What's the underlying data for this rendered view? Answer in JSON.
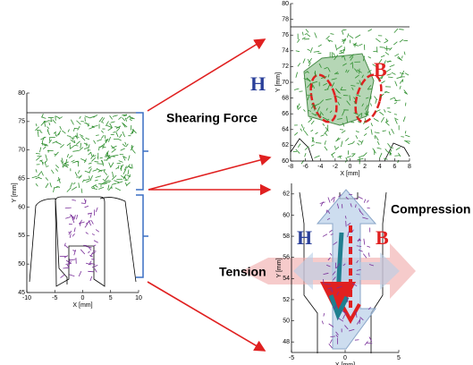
{
  "panels": [
    {
      "xlabel": "X [mm]",
      "ylabel": "Y [mm]",
      "xlim": [
        -10,
        10
      ],
      "ylim": [
        45,
        80
      ],
      "xticks": [
        -10,
        -5,
        0,
        5,
        10
      ],
      "yticks": [
        45,
        50,
        55,
        60,
        65,
        70,
        75,
        80
      ]
    },
    {
      "xlabel": "X [mm]",
      "ylabel": "Y [mm]",
      "xlim": [
        -8,
        8
      ],
      "ylim": [
        60,
        80
      ],
      "xticks": [
        -8,
        -6,
        -4,
        -2,
        0,
        2,
        4,
        6,
        8
      ],
      "yticks": [
        60,
        62,
        64,
        66,
        68,
        70,
        72,
        74,
        76,
        78,
        80
      ]
    },
    {
      "xlabel": "X [mm]",
      "ylabel": "Y [mm]",
      "xlim": [
        -5,
        5
      ],
      "ylim": [
        47,
        63
      ],
      "xticks": [
        -5,
        0,
        5
      ],
      "yticks": [
        48,
        50,
        52,
        54,
        56,
        58,
        60,
        62
      ]
    }
  ],
  "labels": {
    "shearing": "Shearing Force",
    "compression": "Compression",
    "tension": "Tension",
    "h_top": "H",
    "b_top": "B",
    "h_bottom": "H",
    "b_bottom": "B"
  }
}
